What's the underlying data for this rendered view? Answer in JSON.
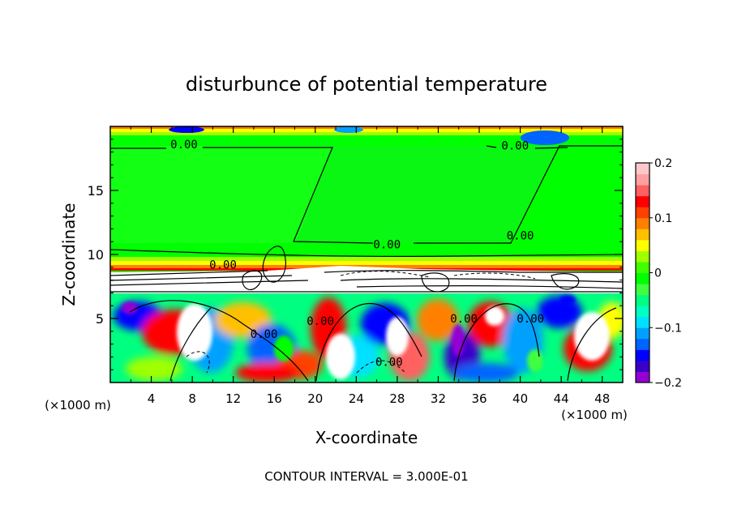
{
  "chart_data": {
    "type": "heatmap",
    "title": "disturbunce of potential temperature",
    "xlabel": "X-coordinate",
    "ylabel": "Z-coordinate",
    "x_unit_left": "(×1000 m)",
    "x_unit_right": "(×1000 m)",
    "xlim": [
      0,
      50
    ],
    "ylim": [
      0,
      20
    ],
    "x_ticks": [
      4,
      8,
      12,
      16,
      20,
      24,
      28,
      32,
      36,
      40,
      44,
      48
    ],
    "x_tick_labels": [
      "4",
      "8",
      "12",
      "16",
      "20",
      "24",
      "28",
      "32",
      "36",
      "40",
      "44",
      "48"
    ],
    "y_ticks": [
      5,
      10,
      15
    ],
    "y_tick_labels": [
      "5",
      "10",
      "15"
    ],
    "contour_labels": [
      {
        "text": "0.00",
        "x": 7.2,
        "z": 18.6
      },
      {
        "text": "0.00",
        "x": 39.5,
        "z": 18.5
      },
      {
        "text": "0.00",
        "x": 27.0,
        "z": 10.8
      },
      {
        "text": "0.00",
        "x": 11.0,
        "z": 9.2
      },
      {
        "text": "0.00",
        "x": 40.0,
        "z": 11.5
      },
      {
        "text": "0.00",
        "x": 15.0,
        "z": 3.8
      },
      {
        "text": "0.00",
        "x": 27.2,
        "z": 1.6
      },
      {
        "text": "0.00",
        "x": 20.5,
        "z": 4.8
      },
      {
        "text": "0.00",
        "x": 34.5,
        "z": 5.0
      },
      {
        "text": "0.00",
        "x": 41.0,
        "z": 5.0
      }
    ],
    "colorbar": {
      "min": -0.2,
      "max": 0.2,
      "tick_values": [
        0.2,
        0.1,
        0,
        -0.1,
        -0.2
      ],
      "tick_labels": [
        "0.2",
        "0.1",
        "0",
        "−0.1",
        "−0.2"
      ],
      "colors": [
        "#9400d3",
        "#3a00c8",
        "#0000ff",
        "#0064ff",
        "#00a0ff",
        "#00e0ff",
        "#00ffc0",
        "#00ff80",
        "#40ff40",
        "#00ff00",
        "#40ff00",
        "#a0ff00",
        "#ffff00",
        "#ffc000",
        "#ff8000",
        "#ff4000",
        "#ff0000",
        "#ff6060",
        "#ffa0a0",
        "#ffc8c8"
      ]
    },
    "footer": "CONTOUR INTERVAL = 3.000E-01"
  }
}
